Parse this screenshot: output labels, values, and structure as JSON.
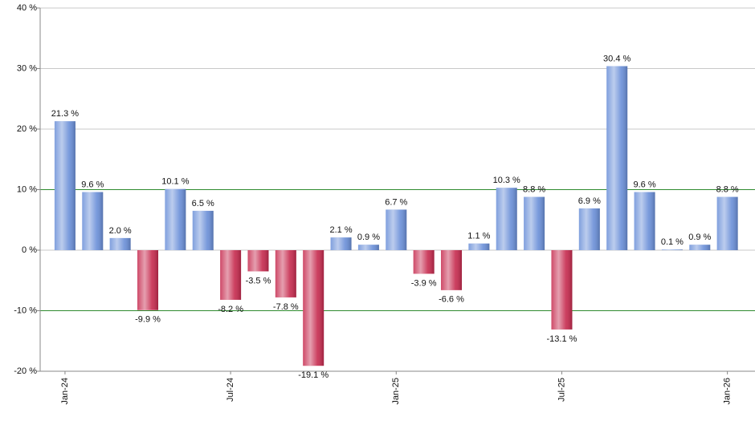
{
  "chart_data": {
    "type": "bar",
    "categories": [
      "Jan-24",
      null,
      null,
      null,
      null,
      null,
      "Jul-24",
      null,
      null,
      null,
      null,
      null,
      "Jan-25",
      null,
      null,
      null,
      null,
      null,
      "Jul-25",
      null,
      null,
      null,
      null,
      null,
      "Jan-26"
    ],
    "values": [
      21.3,
      9.6,
      2.0,
      -9.9,
      10.1,
      6.5,
      -8.2,
      -3.5,
      -7.8,
      -19.1,
      2.1,
      0.9,
      6.7,
      -3.9,
      -6.6,
      1.1,
      10.3,
      8.8,
      -13.1,
      6.9,
      30.4,
      9.6,
      0.1,
      0.9,
      8.8
    ],
    "value_labels": [
      "21.3 %",
      "9.6 %",
      "2.0 %",
      "-9.9 %",
      "10.1 %",
      "6.5 %",
      "-8.2 %",
      "-3.5 %",
      "-7.8 %",
      "-19.1 %",
      "2.1 %",
      "0.9 %",
      "6.7 %",
      "-3.9 %",
      "-6.6 %",
      "1.1 %",
      "10.3 %",
      "8.8 %",
      "-13.1 %",
      "6.9 %",
      "30.4 %",
      "9.6 %",
      "0.1 %",
      "0.9 %",
      "8.8 %"
    ],
    "positive_color": "#6a8fd8",
    "negative_color": "#c62a4e",
    "ylim": [
      -20,
      40
    ],
    "yticks": [
      {
        "value": -20,
        "label": "-20 %"
      },
      {
        "value": -10,
        "label": "-10 %"
      },
      {
        "value": 0,
        "label": "0 %"
      },
      {
        "value": 10,
        "label": "10 %"
      },
      {
        "value": 20,
        "label": "20 %"
      },
      {
        "value": 30,
        "label": "30 %"
      },
      {
        "value": 40,
        "label": "40 %"
      }
    ],
    "grid": true,
    "reference_lines": {
      "values": [
        -10,
        10
      ],
      "color": "#2e8b2e"
    }
  }
}
